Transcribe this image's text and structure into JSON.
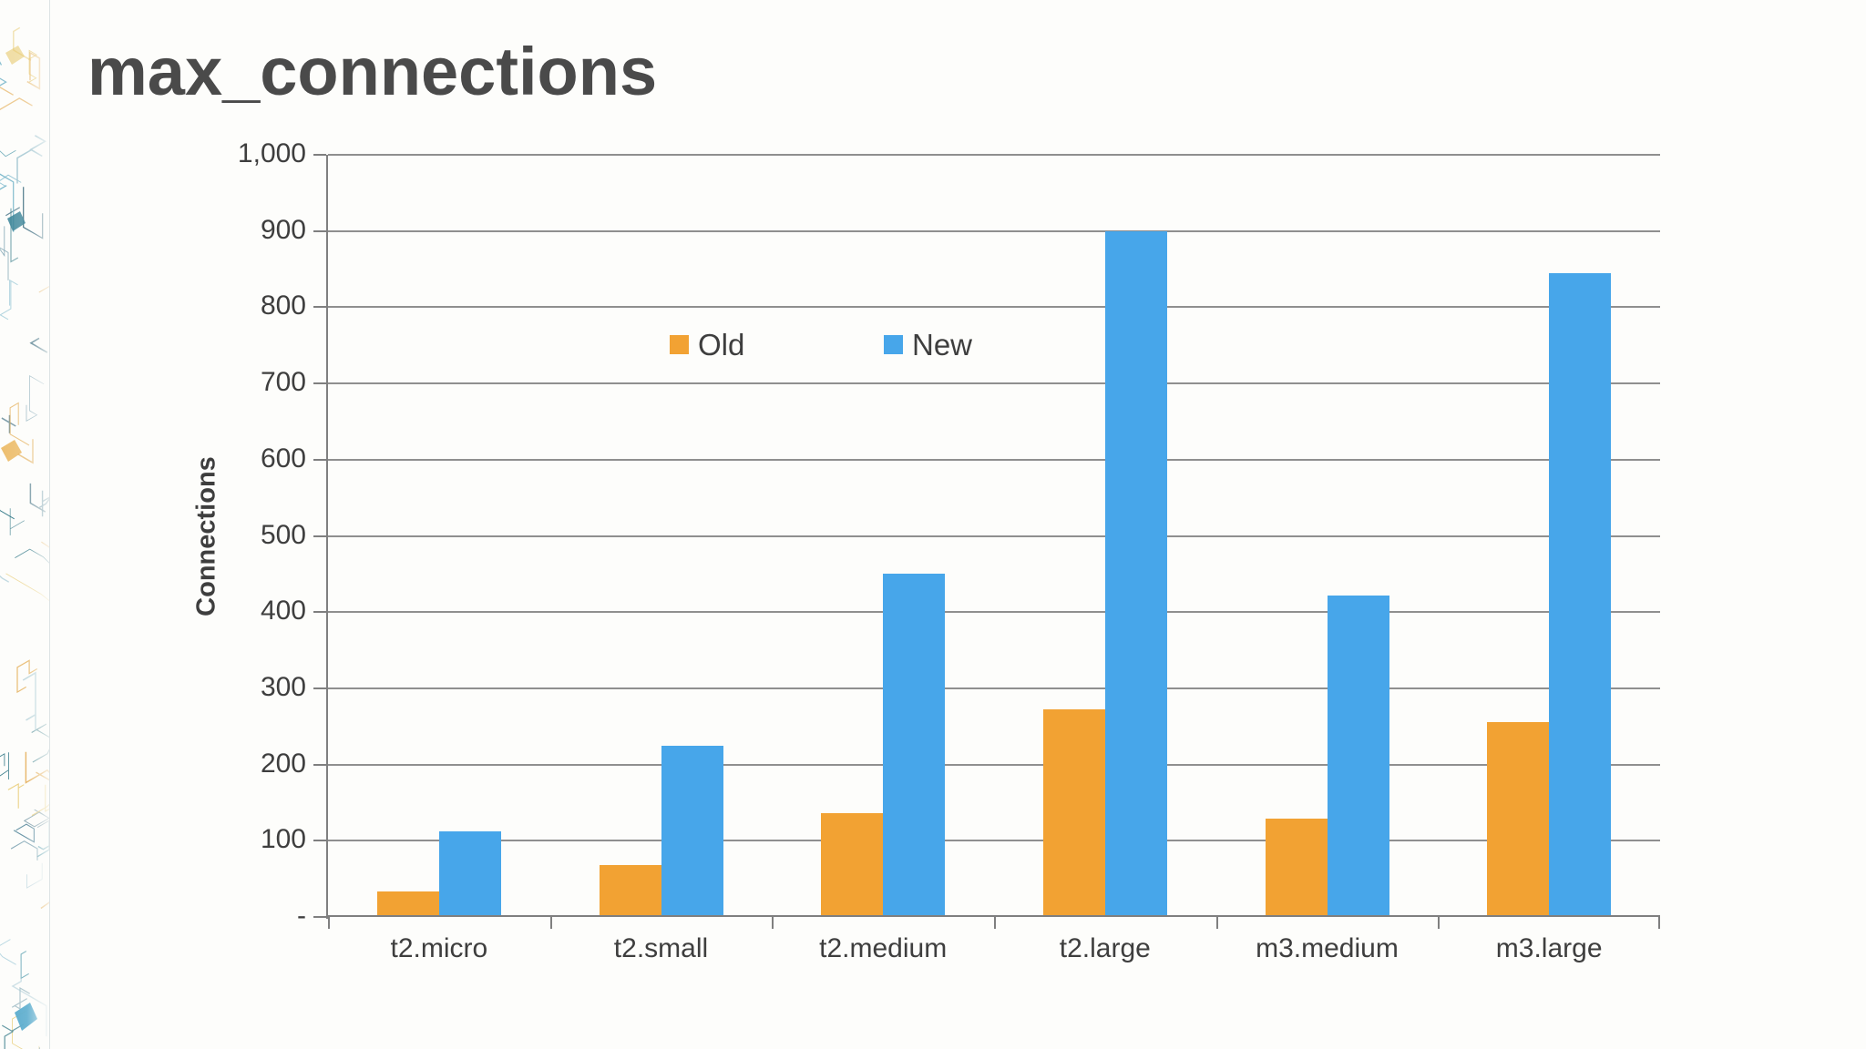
{
  "slide": {
    "background_color": "#fdfdfb",
    "decoration": "circuit-pattern-left-border"
  },
  "chart_data": {
    "type": "bar",
    "title": "max_connections",
    "xlabel": "",
    "ylabel": "Connections",
    "categories": [
      "t2.micro",
      "t2.small",
      "t2.medium",
      "t2.large",
      "m3.medium",
      "m3.large"
    ],
    "series": [
      {
        "name": "Old",
        "color": "#F2A233",
        "values": [
          34,
          68,
          136,
          272,
          129,
          256
        ]
      },
      {
        "name": "New",
        "color": "#47A6EA",
        "values": [
          112,
          225,
          450,
          900,
          422,
          845
        ]
      }
    ],
    "ylim": [
      0,
      1000
    ],
    "ytick_interval": 100,
    "ytick_labels": [
      "-",
      "100",
      "200",
      "300",
      "400",
      "500",
      "600",
      "700",
      "800",
      "900",
      "1,000"
    ],
    "grid": true,
    "legend_position": "inside-top-center",
    "axis_color": "#7f7f7f",
    "gridline_color": "#8f8f8f",
    "text_color": "#3e3e3e",
    "title_color": "#4a4a4a"
  },
  "legend": {
    "items": [
      {
        "label": "Old",
        "color": "#F2A233"
      },
      {
        "label": "New",
        "color": "#47A6EA"
      }
    ]
  },
  "decoration_palette": [
    "#25707f",
    "#3a8ea1",
    "#6fb1c7",
    "#9cc3cf",
    "#e0a23e",
    "#e4c158",
    "#4a7f95",
    "#2b5f74"
  ]
}
